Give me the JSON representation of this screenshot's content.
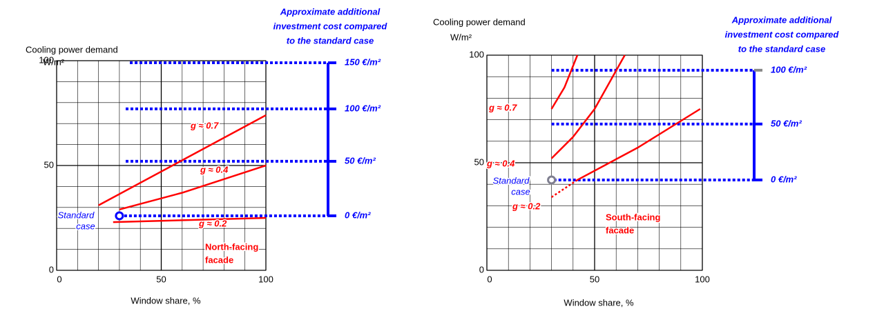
{
  "chart_data": [
    {
      "type": "line",
      "y_label": "Cooling power demand",
      "y_unit": "W/m²",
      "x_label": "Window share, %",
      "xlim": [
        0,
        100
      ],
      "ylim": [
        0,
        100
      ],
      "xticks": [
        0,
        50,
        100
      ],
      "yticks": [
        0,
        50,
        100
      ],
      "minor_ticks": [
        10,
        20,
        30,
        40,
        60,
        70,
        80,
        90
      ],
      "grid": true,
      "series": [
        {
          "name": "g ≈ 0.7",
          "color": "#ff0000",
          "x": [
            20,
            100
          ],
          "values": [
            31,
            74
          ]
        },
        {
          "name": "g ≈ 0.4",
          "color": "#ff0000",
          "x": [
            30,
            60,
            100
          ],
          "values": [
            29,
            37,
            50
          ]
        },
        {
          "name": "g ≈ 0.2",
          "color": "#ff0000",
          "x": [
            27,
            100
          ],
          "values": [
            23,
            25
          ]
        }
      ],
      "marker": {
        "label": [
          "Standard",
          "case"
        ],
        "x": 30,
        "y": 26,
        "color": "#0000ff"
      },
      "facade": [
        "North-facing",
        "facade"
      ],
      "cost": {
        "title": [
          "Approximate additional",
          "investment cost compared",
          "to the standard case"
        ],
        "color": "#0000ff",
        "levels": [
          {
            "label": "150 €/m²",
            "y": 99,
            "from_x": 35
          },
          {
            "label": "100 €/m²",
            "y": 77,
            "from_x": 33
          },
          {
            "label": "50 €/m²",
            "y": 52,
            "from_x": 33
          },
          {
            "label": "0 €/m²",
            "y": 26,
            "from_x": 30
          }
        ]
      }
    },
    {
      "type": "line",
      "y_label": "Cooling power demand",
      "y_unit": "W/m²",
      "x_label": "Window share, %",
      "xlim": [
        0,
        100
      ],
      "ylim": [
        0,
        100
      ],
      "xticks": [
        0,
        50,
        100
      ],
      "yticks": [
        0,
        50,
        100
      ],
      "minor_ticks": [
        10,
        20,
        30,
        40,
        60,
        70,
        80,
        90
      ],
      "grid": true,
      "series": [
        {
          "name": "g ≈ 0.7",
          "color": "#ff0000",
          "x": [
            30,
            36,
            42
          ],
          "values": [
            75,
            85,
            100
          ]
        },
        {
          "name": "g ≈ 0.4",
          "color": "#ff0000",
          "x": [
            30,
            40,
            50,
            64
          ],
          "values": [
            52,
            62,
            75,
            100
          ]
        },
        {
          "name": "g ≈ 0.2",
          "color": "#ff0000",
          "x": [
            42,
            70,
            99
          ],
          "values": [
            42,
            57,
            75
          ]
        },
        {
          "color": "#ff0000",
          "style": "dotted",
          "x": [
            30,
            42
          ],
          "values": [
            34,
            42
          ]
        }
      ],
      "marker": {
        "label": [
          "Standard",
          "case"
        ],
        "x": 30,
        "y": 42,
        "color": "#7f7f90"
      },
      "facade": [
        "South-facing",
        "facade"
      ],
      "cost": {
        "title": [
          "Approximate additional",
          "investment cost compared",
          "to the standard case"
        ],
        "color": "#0000ff",
        "levels": [
          {
            "label": "100 €/m²",
            "y": 93,
            "from_x": 30
          },
          {
            "label": "50 €/m²",
            "y": 68,
            "from_x": 30
          },
          {
            "label": "0 €/m²",
            "y": 42,
            "from_x": 31
          }
        ]
      }
    }
  ]
}
